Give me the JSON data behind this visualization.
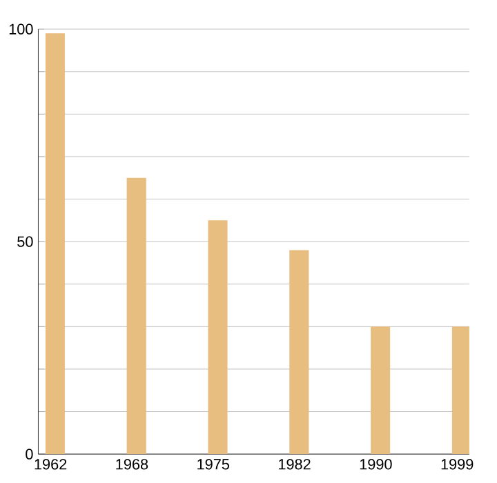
{
  "chart_data": {
    "type": "bar",
    "categories": [
      "1962",
      "1968",
      "1975",
      "1982",
      "1990",
      "1999"
    ],
    "values": [
      99,
      65,
      55,
      48,
      30,
      30
    ],
    "color": "#e8bd80",
    "ylim": [
      0,
      100
    ],
    "yticks": [
      0,
      {
        "value": 10,
        "label": null
      },
      {
        "value": 20,
        "label": null
      },
      {
        "value": 30,
        "label": null
      },
      {
        "value": 40,
        "label": null
      },
      50,
      {
        "value": 60,
        "label": null
      },
      {
        "value": 70,
        "label": null
      },
      {
        "value": 80,
        "label": null
      },
      {
        "value": 90,
        "label": null
      },
      100
    ],
    "grid": "y"
  }
}
